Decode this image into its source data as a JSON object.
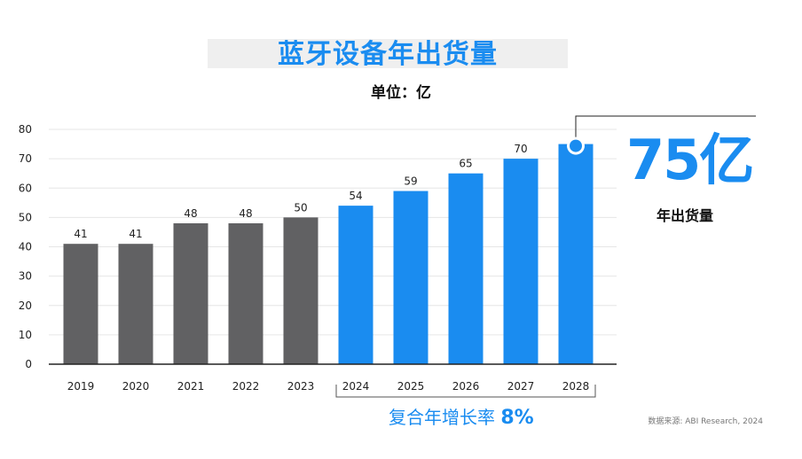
{
  "title": "蓝牙设备年出货量",
  "unit_label": "单位：亿",
  "callout": {
    "value": "75亿",
    "label": "年出货量"
  },
  "cagr": {
    "label": "复合年增长率",
    "value": "8%"
  },
  "source": "数据来源: ABI Research, 2024",
  "colors": {
    "historical": "#616163",
    "forecast": "#1a8cf0"
  },
  "chart_data": {
    "type": "bar",
    "categories": [
      "2019",
      "2020",
      "2021",
      "2022",
      "2023",
      "2024",
      "2025",
      "2026",
      "2027",
      "2028"
    ],
    "values": [
      41,
      41,
      48,
      48,
      50,
      54,
      59,
      65,
      70,
      75
    ],
    "data_labels": [
      "41",
      "41",
      "48",
      "48",
      "50",
      "54",
      "59",
      "65",
      "70",
      ""
    ],
    "forecast_from_index": 5,
    "ylim": [
      0,
      80
    ],
    "yticks": [
      0,
      10,
      20,
      30,
      40,
      50,
      60,
      70,
      80
    ],
    "grid": true,
    "title": "",
    "xlabel": "",
    "ylabel": ""
  }
}
